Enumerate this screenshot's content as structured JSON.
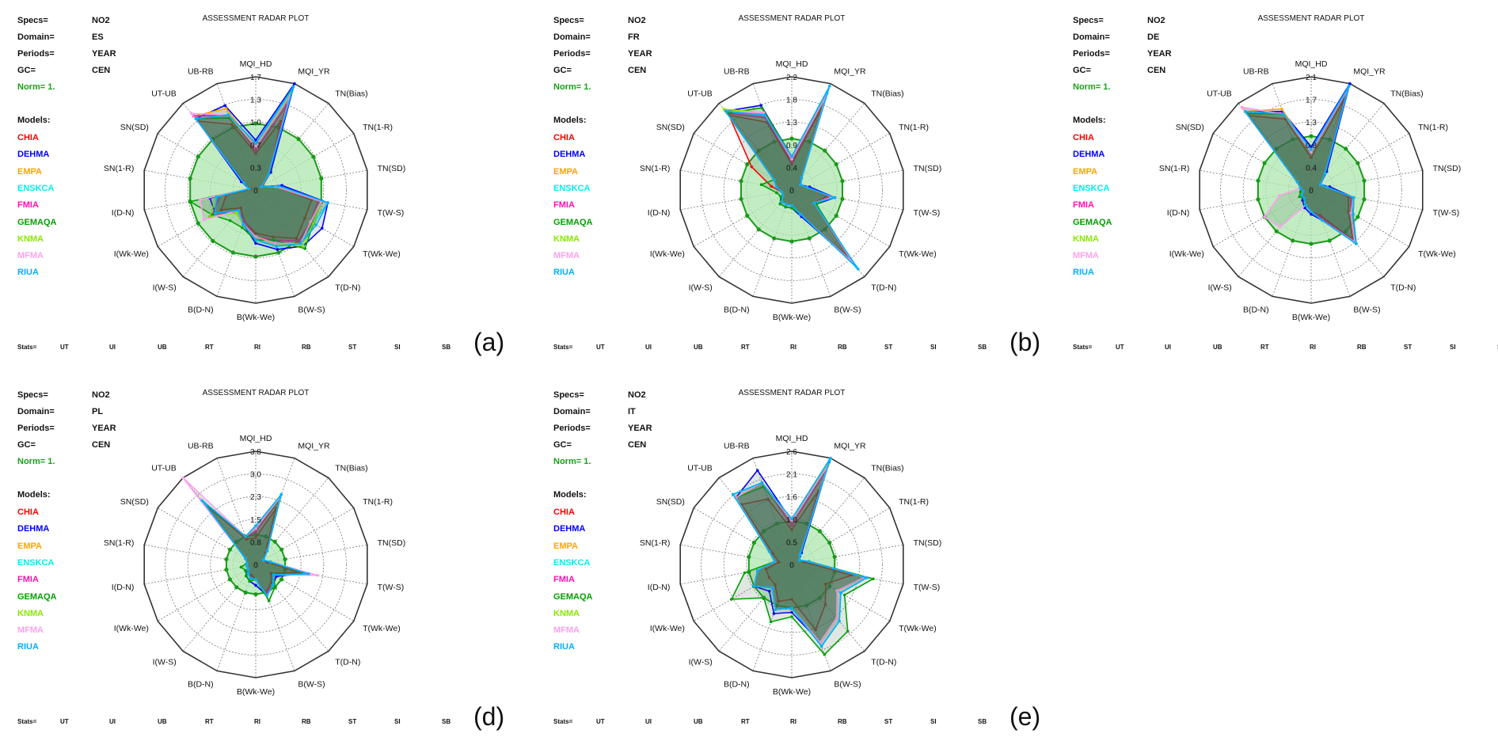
{
  "header_labels": {
    "specs": "Specs=",
    "domain": "Domain=",
    "periods": "Periods=",
    "gc": "GC=",
    "norm": "Norm= 1.",
    "models": "Models:"
  },
  "title": "ASSESSMENT RADAR PLOT",
  "stats_label": "Stats=",
  "stats": [
    "UT",
    "UI",
    "UB",
    "RT",
    "RI",
    "RB",
    "ST",
    "SI",
    "SB"
  ],
  "colors": {
    "norm_fill": "#aee6ae",
    "norm_stroke": "#1a9a1a",
    "model_fill": "#3d6b52"
  },
  "chart_data": {
    "type": "radar",
    "axes": [
      "MQI_HD",
      "MQI_YR",
      "TN(Bias)",
      "TN(1-R)",
      "TN(SD)",
      "T(W-S)",
      "T(Wk-We)",
      "T(D-N)",
      "B(W-S)",
      "B(Wk-We)",
      "B(D-N)",
      "I(W-S)",
      "I(Wk-We)",
      "I(D-N)",
      "SN(1-R)",
      "SN(SD)",
      "UT-UB",
      "UB-RB"
    ],
    "models": [
      {
        "name": "CHIA",
        "color": "#ff0000"
      },
      {
        "name": "DEHMA",
        "color": "#0000ff"
      },
      {
        "name": "EMPA",
        "color": "#ffa500"
      },
      {
        "name": "ENSKCA",
        "color": "#00f0f0"
      },
      {
        "name": "FMIA",
        "color": "#ff10b0"
      },
      {
        "name": "GEMAQA",
        "color": "#00a000"
      },
      {
        "name": "KNMA",
        "color": "#88e800"
      },
      {
        "name": "MFMA",
        "color": "#ffa0ee"
      },
      {
        "name": "RIUA",
        "color": "#00b0ff"
      }
    ],
    "norm": 1.0,
    "panels": [
      {
        "letter": "(a)",
        "specs": "NO2",
        "domain": "ES",
        "periods": "YEAR",
        "gc": "CEN",
        "max": 1.7,
        "ticks": [
          "0",
          "0.3",
          "0.7",
          "1.0",
          "1.3",
          "1.7"
        ],
        "series": [
          [
            0.55,
            1.1,
            0.35,
            0.12,
            0.3,
            0.85,
            0.85,
            0.95,
            0.75,
            0.65,
            0.5,
            0.35,
            0.6,
            0.45,
            0.08,
            0.18,
            1.35,
            1.05
          ],
          [
            0.75,
            1.7,
            0.35,
            0.1,
            0.4,
            1.1,
            1.15,
            1.1,
            0.95,
            0.8,
            0.55,
            0.45,
            0.7,
            0.7,
            0.1,
            0.25,
            1.4,
            1.35
          ],
          [
            0.65,
            1.55,
            0.3,
            0.1,
            0.3,
            1.0,
            0.95,
            1.05,
            0.85,
            0.7,
            0.55,
            0.4,
            0.7,
            0.6,
            0.1,
            0.2,
            1.45,
            1.3
          ],
          [
            0.7,
            1.6,
            0.3,
            0.1,
            0.3,
            1.1,
            1.0,
            1.05,
            0.9,
            0.75,
            0.55,
            0.4,
            0.7,
            0.6,
            0.1,
            0.2,
            1.4,
            1.2
          ],
          [
            0.6,
            1.35,
            0.3,
            0.1,
            0.3,
            0.95,
            0.95,
            1.0,
            0.8,
            0.7,
            0.5,
            0.4,
            0.75,
            0.55,
            0.1,
            0.2,
            1.45,
            1.2
          ],
          [
            0.65,
            1.5,
            0.3,
            0.1,
            0.3,
            1.0,
            1.0,
            1.15,
            0.8,
            0.75,
            0.6,
            0.6,
            0.75,
            1.0,
            0.1,
            0.2,
            1.4,
            1.15
          ],
          [
            0.65,
            1.55,
            0.3,
            0.1,
            0.3,
            1.0,
            1.0,
            1.1,
            0.85,
            0.7,
            0.55,
            0.45,
            0.8,
            0.6,
            0.1,
            0.2,
            1.4,
            1.2
          ],
          [
            0.65,
            1.5,
            0.3,
            0.1,
            0.3,
            1.0,
            0.95,
            1.05,
            0.85,
            0.7,
            0.55,
            0.4,
            0.9,
            0.85,
            0.1,
            0.2,
            1.5,
            1.2
          ],
          [
            0.7,
            1.65,
            0.3,
            0.1,
            0.35,
            1.1,
            1.05,
            1.05,
            0.9,
            0.75,
            0.55,
            0.4,
            0.7,
            0.6,
            0.1,
            0.2,
            1.4,
            1.2
          ]
        ]
      },
      {
        "letter": "(b)",
        "specs": "NO2",
        "domain": "FR",
        "periods": "YEAR",
        "gc": "CEN",
        "max": 2.2,
        "ticks": [
          "0",
          "0.4",
          "0.9",
          "1.3",
          "1.8",
          "2.2"
        ],
        "series": [
          [
            0.5,
            1.7,
            0.3,
            0.2,
            0.3,
            0.7,
            0.5,
            1.7,
            0.5,
            0.3,
            0.3,
            0.3,
            0.2,
            0.2,
            0.4,
            0.9,
            1.9,
            1.4
          ],
          [
            0.65,
            2.0,
            0.3,
            0.2,
            0.35,
            0.85,
            0.55,
            1.8,
            0.55,
            0.35,
            0.35,
            0.35,
            0.2,
            0.2,
            0.3,
            0.4,
            2.0,
            1.75
          ],
          [
            0.6,
            1.9,
            0.3,
            0.2,
            0.3,
            0.8,
            0.5,
            1.85,
            0.5,
            0.3,
            0.3,
            0.3,
            0.2,
            0.2,
            0.3,
            0.4,
            2.0,
            1.6
          ],
          [
            0.6,
            2.0,
            0.3,
            0.2,
            0.3,
            0.8,
            0.5,
            1.95,
            0.5,
            0.3,
            0.3,
            0.3,
            0.2,
            0.2,
            0.3,
            0.4,
            2.0,
            1.55
          ],
          [
            0.55,
            1.9,
            0.3,
            0.2,
            0.3,
            0.75,
            0.5,
            1.8,
            0.5,
            0.3,
            0.3,
            0.3,
            0.2,
            0.2,
            0.3,
            0.4,
            1.95,
            1.5
          ],
          [
            0.65,
            1.9,
            0.3,
            0.2,
            0.3,
            0.8,
            0.55,
            1.85,
            0.5,
            0.35,
            0.35,
            0.35,
            0.25,
            0.3,
            0.6,
            0.4,
            1.95,
            1.7
          ],
          [
            0.6,
            1.95,
            0.3,
            0.2,
            0.3,
            0.8,
            0.5,
            1.85,
            0.5,
            0.3,
            0.3,
            0.3,
            0.2,
            0.2,
            0.3,
            0.4,
            2.05,
            1.6
          ],
          [
            0.6,
            1.95,
            0.3,
            0.2,
            0.3,
            0.8,
            0.5,
            1.85,
            0.5,
            0.3,
            0.3,
            0.3,
            0.2,
            0.2,
            0.3,
            0.4,
            2.0,
            1.6
          ],
          [
            0.65,
            2.15,
            0.3,
            0.2,
            0.3,
            0.85,
            0.5,
            2.0,
            0.5,
            0.3,
            0.3,
            0.3,
            0.2,
            0.2,
            0.3,
            0.4,
            2.0,
            1.55
          ]
        ]
      },
      {
        "letter": "(c)",
        "specs": "NO2",
        "domain": "DE",
        "periods": "YEAR",
        "gc": "CEN",
        "max": 2.1,
        "ticks": [
          "0",
          "0.4",
          "0.8",
          "1.3",
          "1.7",
          "2.1"
        ],
        "series": [
          [
            0.6,
            1.8,
            0.4,
            0.2,
            0.3,
            0.7,
            0.8,
            1.2,
            0.5,
            0.4,
            0.3,
            0.2,
            0.2,
            0.15,
            0.2,
            0.3,
            1.8,
            1.4
          ],
          [
            0.8,
            2.1,
            0.45,
            0.2,
            0.35,
            0.8,
            0.9,
            1.3,
            0.6,
            0.45,
            0.35,
            0.25,
            0.2,
            0.15,
            0.2,
            0.3,
            1.9,
            1.55
          ],
          [
            0.7,
            2.0,
            0.4,
            0.2,
            0.3,
            0.75,
            0.85,
            1.25,
            0.6,
            0.4,
            0.3,
            0.2,
            0.2,
            0.15,
            0.2,
            0.3,
            1.9,
            1.6
          ],
          [
            0.75,
            2.05,
            0.4,
            0.2,
            0.3,
            0.8,
            0.9,
            1.3,
            0.6,
            0.4,
            0.3,
            0.2,
            0.2,
            0.15,
            0.2,
            0.3,
            1.9,
            1.5
          ],
          [
            0.7,
            1.95,
            0.4,
            0.2,
            0.3,
            0.75,
            0.85,
            1.25,
            0.55,
            0.4,
            0.3,
            0.2,
            0.2,
            0.15,
            0.2,
            0.3,
            2.0,
            1.5
          ],
          [
            0.7,
            2.0,
            0.4,
            0.2,
            0.3,
            0.8,
            0.9,
            1.3,
            0.6,
            0.4,
            0.3,
            0.2,
            0.25,
            0.2,
            0.2,
            0.3,
            1.85,
            1.5
          ],
          [
            0.7,
            2.0,
            0.4,
            0.2,
            0.3,
            0.8,
            0.9,
            1.3,
            0.6,
            0.4,
            0.3,
            0.2,
            0.2,
            0.15,
            0.2,
            0.3,
            1.9,
            1.5
          ],
          [
            0.7,
            2.0,
            0.4,
            0.2,
            0.3,
            0.8,
            0.85,
            1.25,
            0.6,
            0.4,
            0.3,
            0.9,
            1.0,
            0.6,
            0.2,
            0.3,
            2.0,
            1.5
          ],
          [
            0.75,
            2.05,
            0.4,
            0.2,
            0.3,
            0.8,
            0.9,
            1.3,
            0.6,
            0.4,
            0.3,
            0.2,
            0.2,
            0.15,
            0.2,
            0.3,
            1.9,
            1.5
          ]
        ]
      },
      {
        "letter": "(d)",
        "specs": "NO2",
        "domain": "PL",
        "periods": "YEAR",
        "gc": "CEN",
        "max": 3.8,
        "ticks": [
          "0",
          "0.8",
          "1.5",
          "2.3",
          "3.0",
          "3.8"
        ],
        "series": [
          [
            0.9,
            2.0,
            0.5,
            0.3,
            0.4,
            1.5,
            0.6,
            0.8,
            1.0,
            0.5,
            0.4,
            0.4,
            0.3,
            0.3,
            0.3,
            0.4,
            2.6,
            0.9
          ],
          [
            1.2,
            2.3,
            0.6,
            0.3,
            0.5,
            1.7,
            0.8,
            0.9,
            1.1,
            0.7,
            0.6,
            0.5,
            0.3,
            0.3,
            0.3,
            0.4,
            2.7,
            1.0
          ],
          [
            1.2,
            2.4,
            0.6,
            0.3,
            0.5,
            1.8,
            0.7,
            0.9,
            1.1,
            0.5,
            0.5,
            0.4,
            0.3,
            0.3,
            0.3,
            0.4,
            2.8,
            1.0
          ],
          [
            1.3,
            2.5,
            0.6,
            0.3,
            0.5,
            1.8,
            0.7,
            0.9,
            1.1,
            0.5,
            0.5,
            0.4,
            0.3,
            0.3,
            0.3,
            0.4,
            2.8,
            1.0
          ],
          [
            1.1,
            2.3,
            0.6,
            0.3,
            0.5,
            1.8,
            0.7,
            0.9,
            1.0,
            0.5,
            0.5,
            0.4,
            0.3,
            0.3,
            0.3,
            0.4,
            2.8,
            1.0
          ],
          [
            1.2,
            2.3,
            0.6,
            0.3,
            0.5,
            1.7,
            0.7,
            1.0,
            1.3,
            0.5,
            0.6,
            0.5,
            0.4,
            0.5,
            0.3,
            0.4,
            2.7,
            1.0
          ],
          [
            1.2,
            2.4,
            0.6,
            0.3,
            0.5,
            1.8,
            0.7,
            0.9,
            1.1,
            0.5,
            0.5,
            0.4,
            0.3,
            0.3,
            0.3,
            0.4,
            2.8,
            1.0
          ],
          [
            1.2,
            2.4,
            0.6,
            0.3,
            0.5,
            2.1,
            0.7,
            0.9,
            1.1,
            0.5,
            0.5,
            0.4,
            0.3,
            0.3,
            0.3,
            0.4,
            3.8,
            1.0
          ],
          [
            1.3,
            2.5,
            0.6,
            0.3,
            0.5,
            1.8,
            0.7,
            0.9,
            1.1,
            0.5,
            0.5,
            0.4,
            0.3,
            0.3,
            0.3,
            0.4,
            2.8,
            1.0
          ]
        ]
      },
      {
        "letter": "(e)",
        "specs": "NO2",
        "domain": "IT",
        "periods": "YEAR",
        "gc": "CEN",
        "max": 2.6,
        "ticks": [
          "0",
          "0.5",
          "1.0",
          "1.6",
          "2.1",
          "2.6"
        ],
        "series": [
          [
            0.8,
            1.8,
            0.3,
            0.2,
            0.3,
            1.4,
            0.9,
            1.2,
            1.6,
            0.8,
            0.9,
            0.6,
            0.6,
            0.6,
            0.3,
            0.5,
            1.8,
            1.6
          ],
          [
            1.0,
            2.5,
            0.35,
            0.2,
            0.4,
            1.7,
            1.2,
            1.6,
            1.9,
            1.1,
            1.2,
            0.8,
            1.0,
            0.8,
            0.4,
            0.6,
            2.0,
            2.3
          ],
          [
            1.0,
            2.4,
            0.3,
            0.2,
            0.4,
            1.7,
            1.2,
            1.6,
            1.9,
            1.0,
            1.1,
            0.7,
            1.0,
            0.8,
            0.4,
            0.6,
            2.0,
            2.0
          ],
          [
            1.0,
            2.55,
            0.3,
            0.2,
            0.4,
            1.75,
            1.3,
            1.7,
            2.0,
            1.0,
            1.1,
            0.7,
            1.0,
            0.8,
            0.4,
            0.6,
            2.1,
            2.0
          ],
          [
            0.9,
            2.3,
            0.3,
            0.2,
            0.4,
            1.7,
            1.2,
            1.6,
            1.9,
            1.0,
            1.1,
            0.7,
            1.0,
            0.8,
            0.4,
            0.6,
            2.0,
            2.0
          ],
          [
            1.0,
            2.4,
            0.3,
            0.2,
            0.4,
            1.9,
            1.4,
            2.0,
            2.2,
            1.2,
            1.4,
            1.0,
            1.6,
            1.1,
            0.4,
            0.6,
            2.0,
            1.9
          ],
          [
            1.0,
            2.45,
            0.3,
            0.2,
            0.4,
            1.7,
            1.2,
            1.6,
            1.9,
            1.0,
            1.1,
            0.7,
            1.0,
            0.8,
            0.4,
            0.6,
            2.0,
            2.0
          ],
          [
            1.0,
            2.4,
            0.3,
            0.2,
            0.4,
            1.7,
            1.2,
            1.6,
            1.9,
            1.0,
            1.1,
            0.7,
            1.0,
            0.8,
            0.4,
            0.6,
            2.0,
            2.0
          ],
          [
            1.05,
            2.6,
            0.3,
            0.2,
            0.4,
            1.75,
            1.3,
            1.7,
            2.0,
            1.0,
            1.1,
            0.7,
            1.0,
            0.8,
            0.4,
            0.6,
            2.1,
            2.0
          ]
        ]
      }
    ]
  }
}
